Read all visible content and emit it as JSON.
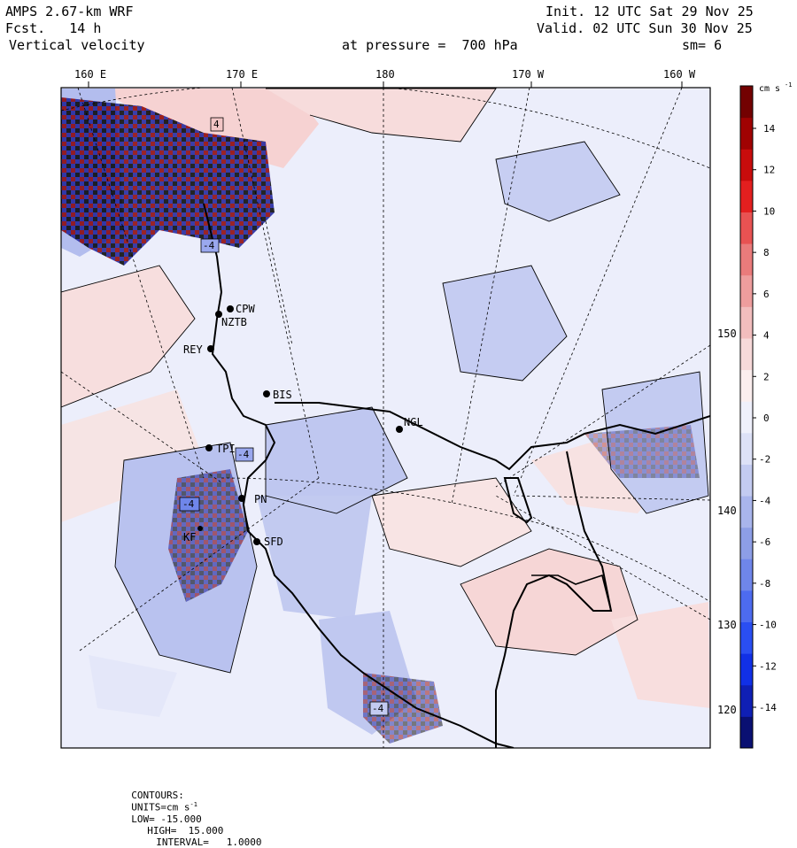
{
  "header": {
    "model": "AMPS 2.67-km WRF",
    "forecast": "Fcst.   14 h",
    "field": "Vertical velocity",
    "init": "Init. 12 UTC Sat 29 Nov 25",
    "valid": "Valid. 02 UTC Sun 30 Nov 25",
    "pressure_label": "at pressure =  700 hPa",
    "smoothing": "sm= 6"
  },
  "map": {
    "top_longitude_labels": [
      "160 E",
      "170 E",
      "180",
      "170 W",
      "160 W"
    ],
    "right_longitude_labels": [
      "150 W",
      "140 W",
      "130 W",
      "120 W"
    ],
    "stations": [
      "CPW",
      "NZTB",
      "REY",
      "BIS",
      "NGL",
      "TPI",
      "PN",
      "SFD",
      "KF"
    ],
    "contour_value_boxes": [
      "4",
      "-4",
      "-4",
      "-4",
      "-4"
    ]
  },
  "colorbar": {
    "units_label": "cm s",
    "units_exponent": "-1",
    "tick_labels": [
      "14",
      "12",
      "10",
      "8",
      "6",
      "4",
      "2",
      "0",
      "-2",
      "-4",
      "-6",
      "-8",
      "-10",
      "-12",
      "-14"
    ],
    "colors": [
      "#0a1072",
      "#0f1fb4",
      "#1130e6",
      "#2a4ef2",
      "#4d6bef",
      "#6f86ea",
      "#8d9ee6",
      "#a9b5ec",
      "#c3cbf1",
      "#dde1f7",
      "#eff0fb",
      "#fbeeee",
      "#f7d9d9",
      "#f2bdbd",
      "#ee9d9d",
      "#ea7b7b",
      "#e85252",
      "#e31f1f",
      "#c80c0c",
      "#a00202",
      "#730101"
    ]
  },
  "footer": {
    "contours_label": "CONTOURS:",
    "units": "UNITS=cm s",
    "units_exponent": "-1",
    "low": "LOW= -15.000",
    "high": "HIGH=  15.000",
    "interval": "INTERVAL=   1.0000"
  }
}
